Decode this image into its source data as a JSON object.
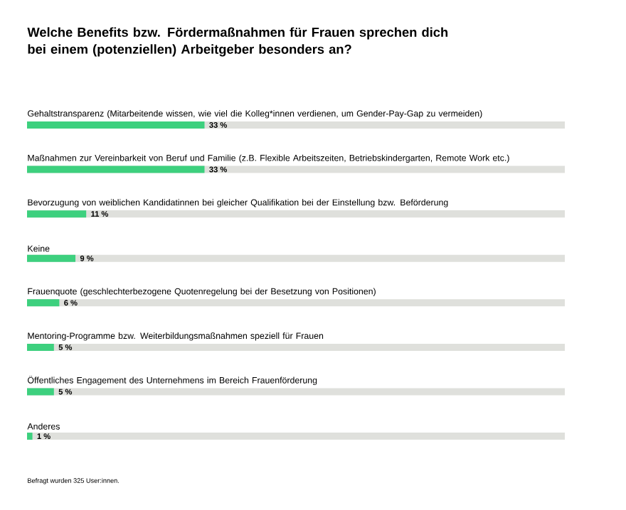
{
  "chart_data": {
    "type": "bar",
    "orientation": "horizontal",
    "title": "Welche Benefits bzw. Fördermaßnahmen für Frauen sprechen dich bei einem (potenziellen) Arbeitgeber besonders an?",
    "categories": [
      "Gehaltstransparenz (Mitarbeitende wissen, wie viel die Kolleg*innen verdienen, um Gender-Pay-Gap zu vermeiden)",
      "Maßnahmen zur Vereinbarkeit von Beruf und Familie (z.B. Flexible Arbeitszeiten, Betriebskindergarten, Remote Work etc.)",
      "Bevorzugung von weiblichen Kandidatinnen bei gleicher Qualifikation bei der Einstellung bzw. Beförderung",
      "Keine",
      "Frauenquote (geschlechterbezogene Quotenregelung bei der Besetzung von Positionen)",
      "Mentoring-Programme bzw. Weiterbildungsmaßnahmen speziell für Frauen",
      "Öffentliches Engagement des Unternehmens im Bereich Frauenförderung",
      "Anderes"
    ],
    "values": [
      33,
      33,
      11,
      9,
      6,
      5,
      5,
      1
    ],
    "value_labels": [
      "33 %",
      "33 %",
      "11 %",
      "9 %",
      "6 %",
      "5 %",
      "5 %",
      "1 %"
    ],
    "color": "#3dd07e",
    "xlim": [
      0,
      100
    ],
    "annotations": [
      "Befragt wurden 325 User:innen."
    ]
  }
}
